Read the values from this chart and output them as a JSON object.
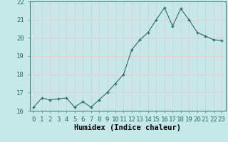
{
  "x": [
    0,
    1,
    2,
    3,
    4,
    5,
    6,
    7,
    8,
    9,
    10,
    11,
    12,
    13,
    14,
    15,
    16,
    17,
    18,
    19,
    20,
    21,
    22,
    23
  ],
  "y": [
    16.2,
    16.7,
    16.6,
    16.65,
    16.7,
    16.2,
    16.5,
    16.2,
    16.6,
    17.0,
    17.5,
    18.0,
    19.35,
    19.9,
    20.3,
    21.0,
    21.65,
    20.65,
    21.6,
    21.0,
    20.3,
    20.1,
    19.9,
    19.85
  ],
  "xlabel": "Humidex (Indice chaleur)",
  "ylim": [
    16,
    22
  ],
  "xlim_min": -0.5,
  "xlim_max": 23.5,
  "yticks": [
    16,
    17,
    18,
    19,
    20,
    21,
    22
  ],
  "xticks": [
    0,
    1,
    2,
    3,
    4,
    5,
    6,
    7,
    8,
    9,
    10,
    11,
    12,
    13,
    14,
    15,
    16,
    17,
    18,
    19,
    20,
    21,
    22,
    23
  ],
  "line_color": "#2d6e5e",
  "marker_color": "#2d6e5e",
  "bg_color": "#c5e8e8",
  "grid_color": "#e8c8c8",
  "xlabel_fontsize": 7.5,
  "tick_fontsize": 6.5
}
